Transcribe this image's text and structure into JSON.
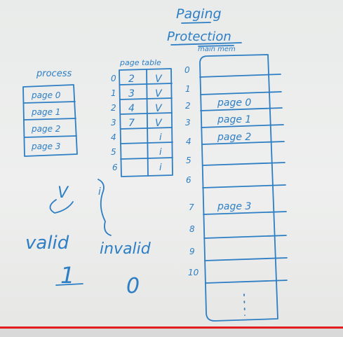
{
  "title": "Paging",
  "subtitle": "Protection",
  "process": {
    "label": "process",
    "pages": [
      "page 0",
      "page 1",
      "page 2",
      "page 3"
    ]
  },
  "page_table": {
    "label": "page table",
    "rows": [
      {
        "index": "0",
        "frame": "2",
        "bit": "V"
      },
      {
        "index": "1",
        "frame": "3",
        "bit": "V"
      },
      {
        "index": "2",
        "frame": "4",
        "bit": "V"
      },
      {
        "index": "3",
        "frame": "7",
        "bit": "V"
      },
      {
        "index": "4",
        "frame": "",
        "bit": "i"
      },
      {
        "index": "5",
        "frame": "",
        "bit": "i"
      },
      {
        "index": "6",
        "frame": "",
        "bit": "i"
      }
    ]
  },
  "main_memory": {
    "label": "main mem",
    "frame_numbers": [
      "0",
      "1",
      "2",
      "3",
      "4",
      "5",
      "6",
      "7",
      "8",
      "9",
      "10"
    ],
    "contents": [
      {
        "frame": "2",
        "text": "page 0"
      },
      {
        "frame": "3",
        "text": "page 1"
      },
      {
        "frame": "4",
        "text": "page 2"
      },
      {
        "frame": "7",
        "text": "page 3"
      }
    ]
  },
  "legend": {
    "v_symbol": "V",
    "valid_label": "valid",
    "valid_value": "1",
    "i_symbol": "i",
    "invalid_label": "invalid",
    "invalid_value": "0"
  },
  "video": {
    "progress_fraction": 1.0,
    "progress_color": "#e21d1d"
  }
}
